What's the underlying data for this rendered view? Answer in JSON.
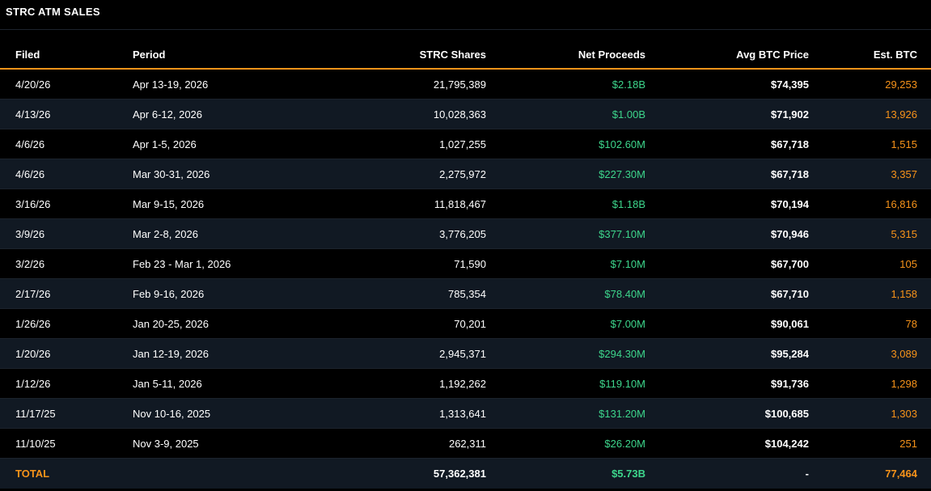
{
  "panel": {
    "title": "STRC ATM SALES"
  },
  "columns": {
    "filed": "Filed",
    "period": "Period",
    "shares": "STRC Shares",
    "proceeds": "Net Proceeds",
    "avg_price": "Avg BTC Price",
    "est_btc": "Est. BTC"
  },
  "rows": [
    {
      "filed": "4/20/26",
      "period": "Apr 13-19, 2026",
      "shares": "21,795,389",
      "proceeds": "$2.18B",
      "avg_price": "$74,395",
      "est_btc": "29,253"
    },
    {
      "filed": "4/13/26",
      "period": "Apr 6-12, 2026",
      "shares": "10,028,363",
      "proceeds": "$1.00B",
      "avg_price": "$71,902",
      "est_btc": "13,926"
    },
    {
      "filed": "4/6/26",
      "period": "Apr 1-5, 2026",
      "shares": "1,027,255",
      "proceeds": "$102.60M",
      "avg_price": "$67,718",
      "est_btc": "1,515"
    },
    {
      "filed": "4/6/26",
      "period": "Mar 30-31, 2026",
      "shares": "2,275,972",
      "proceeds": "$227.30M",
      "avg_price": "$67,718",
      "est_btc": "3,357"
    },
    {
      "filed": "3/16/26",
      "period": "Mar 9-15, 2026",
      "shares": "11,818,467",
      "proceeds": "$1.18B",
      "avg_price": "$70,194",
      "est_btc": "16,816"
    },
    {
      "filed": "3/9/26",
      "period": "Mar 2-8, 2026",
      "shares": "3,776,205",
      "proceeds": "$377.10M",
      "avg_price": "$70,946",
      "est_btc": "5,315"
    },
    {
      "filed": "3/2/26",
      "period": "Feb 23 - Mar 1, 2026",
      "shares": "71,590",
      "proceeds": "$7.10M",
      "avg_price": "$67,700",
      "est_btc": "105"
    },
    {
      "filed": "2/17/26",
      "period": "Feb 9-16, 2026",
      "shares": "785,354",
      "proceeds": "$78.40M",
      "avg_price": "$67,710",
      "est_btc": "1,158"
    },
    {
      "filed": "1/26/26",
      "period": "Jan 20-25, 2026",
      "shares": "70,201",
      "proceeds": "$7.00M",
      "avg_price": "$90,061",
      "est_btc": "78"
    },
    {
      "filed": "1/20/26",
      "period": "Jan 12-19, 2026",
      "shares": "2,945,371",
      "proceeds": "$294.30M",
      "avg_price": "$95,284",
      "est_btc": "3,089"
    },
    {
      "filed": "1/12/26",
      "period": "Jan 5-11, 2026",
      "shares": "1,192,262",
      "proceeds": "$119.10M",
      "avg_price": "$91,736",
      "est_btc": "1,298"
    },
    {
      "filed": "11/17/25",
      "period": "Nov 10-16, 2025",
      "shares": "1,313,641",
      "proceeds": "$131.20M",
      "avg_price": "$100,685",
      "est_btc": "1,303"
    },
    {
      "filed": "11/10/25",
      "period": "Nov 3-9, 2025",
      "shares": "262,311",
      "proceeds": "$26.20M",
      "avg_price": "$104,242",
      "est_btc": "251"
    }
  ],
  "total": {
    "label": "TOTAL",
    "period": "",
    "shares": "57,362,381",
    "proceeds": "$5.73B",
    "avg_price": "-",
    "est_btc": "77,464"
  },
  "colors": {
    "accent": "#f7931a",
    "positive": "#3dd68c",
    "row_alt": "#111923",
    "background": "#000000"
  }
}
